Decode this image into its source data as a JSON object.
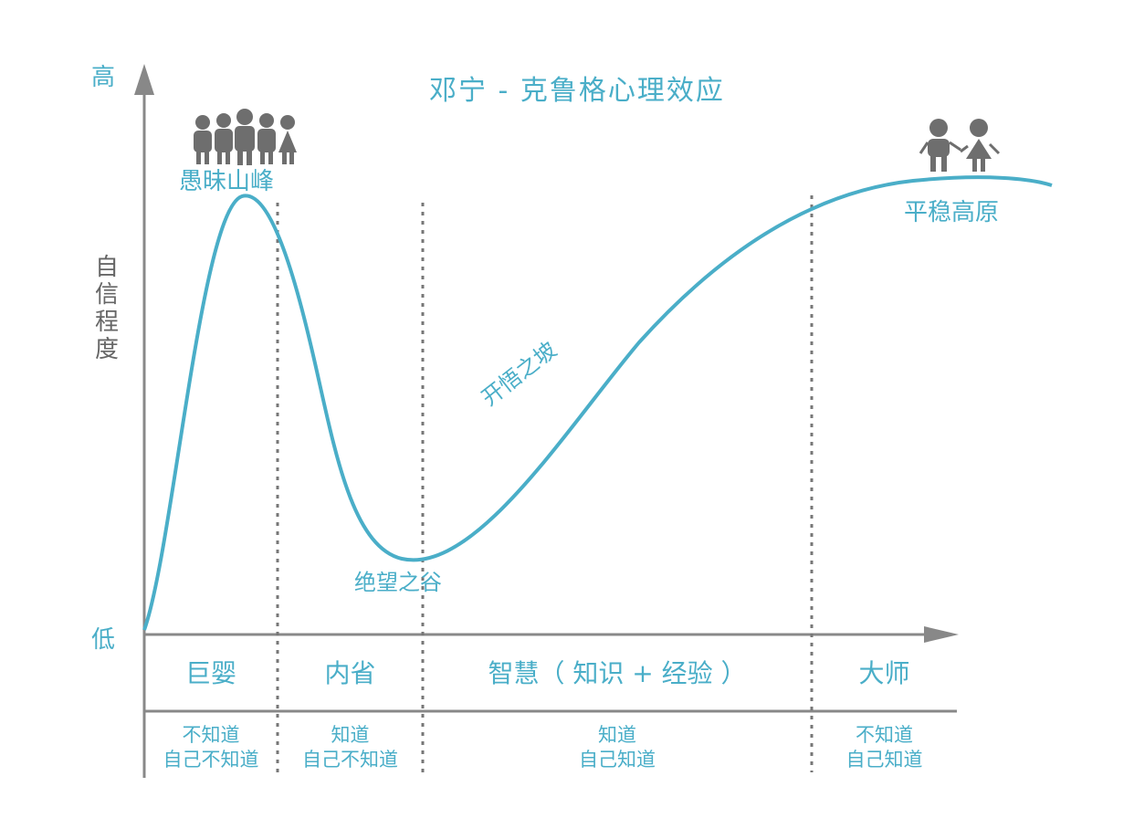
{
  "title": "邓宁 - 克鲁格心理效应",
  "axis": {
    "y_high": "高",
    "y_low": "低",
    "y_label_chars": [
      "自",
      "信",
      "程",
      "度"
    ]
  },
  "curve_labels": {
    "peak": "愚昧山峰",
    "valley": "绝望之谷",
    "slope": "开悟之坡",
    "plateau": "平稳高原"
  },
  "stages": [
    {
      "name": "巨婴",
      "line1": "不知道",
      "line2": "自己不知道"
    },
    {
      "name": "内省",
      "line1": "知道",
      "line2": "自己不知道"
    },
    {
      "name": "智慧（ 知识 + 经验 ）",
      "line1": "知道",
      "line2": "自己知道"
    },
    {
      "name": "大师",
      "line1": "不知道",
      "line2": "自己知道"
    }
  ],
  "colors": {
    "accent": "#4aaec8",
    "axis": "#888888",
    "figure": "#6e6e6e"
  },
  "icons": {
    "crowd": "crowd-of-people-icon",
    "couple": "two-people-icon"
  }
}
